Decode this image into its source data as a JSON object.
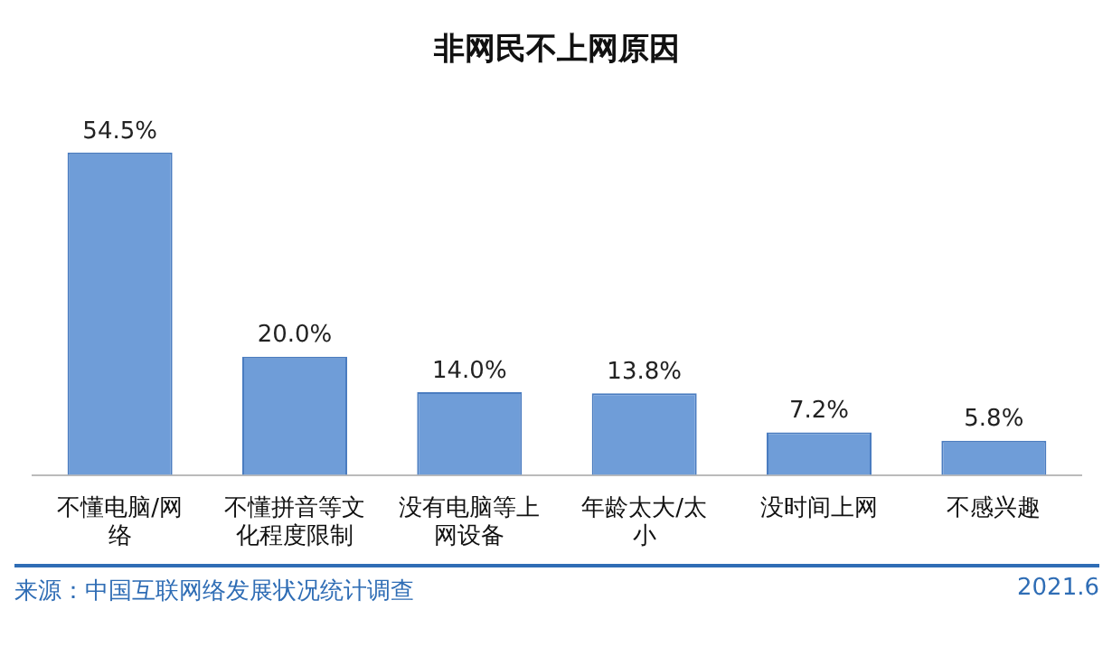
{
  "chart_data": {
    "type": "bar",
    "title": "非网民不上网原因",
    "categories": [
      "不懂电脑/网络",
      "不懂拼音等文化程度限制",
      "没有电脑等上网设备",
      "年龄太大/太小",
      "没时间上网",
      "不感兴趣"
    ],
    "values": [
      54.5,
      20.0,
      14.0,
      13.8,
      7.2,
      5.8
    ],
    "value_labels": [
      "54.5%",
      "20.0%",
      "14.0%",
      "13.8%",
      "7.2%",
      "5.8%"
    ],
    "color": "#6f9dd8",
    "annotations": [
      "来源：中国互联网络发展状况统计调查",
      "2021.6"
    ]
  }
}
